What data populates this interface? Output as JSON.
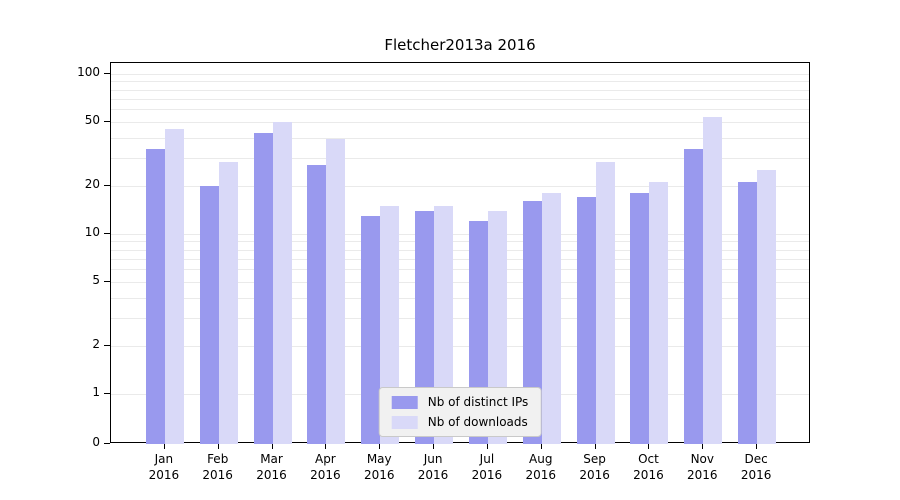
{
  "chart_data": {
    "type": "bar",
    "title": "Fletcher2013a 2016",
    "categories": [
      "Jan",
      "Feb",
      "Mar",
      "Apr",
      "May",
      "Jun",
      "Jul",
      "Aug",
      "Sep",
      "Oct",
      "Nov",
      "Dec"
    ],
    "category_year": "2016",
    "series": [
      {
        "name": "Nb of distinct IPs",
        "color": "#9999ee",
        "values": [
          34,
          20,
          43,
          27,
          13,
          14,
          12,
          16,
          17,
          18,
          34,
          21
        ]
      },
      {
        "name": "Nb of downloads",
        "color": "#d9d9f8",
        "values": [
          45,
          28,
          50,
          39,
          15,
          15,
          14,
          18,
          28,
          21,
          54,
          25
        ]
      }
    ],
    "yscale": "symlog",
    "yticks": [
      0,
      1,
      2,
      5,
      10,
      20,
      50,
      100
    ],
    "ylim": [
      0,
      117
    ],
    "grid": "horizontal-log-minor",
    "legend_position": "lower center"
  }
}
